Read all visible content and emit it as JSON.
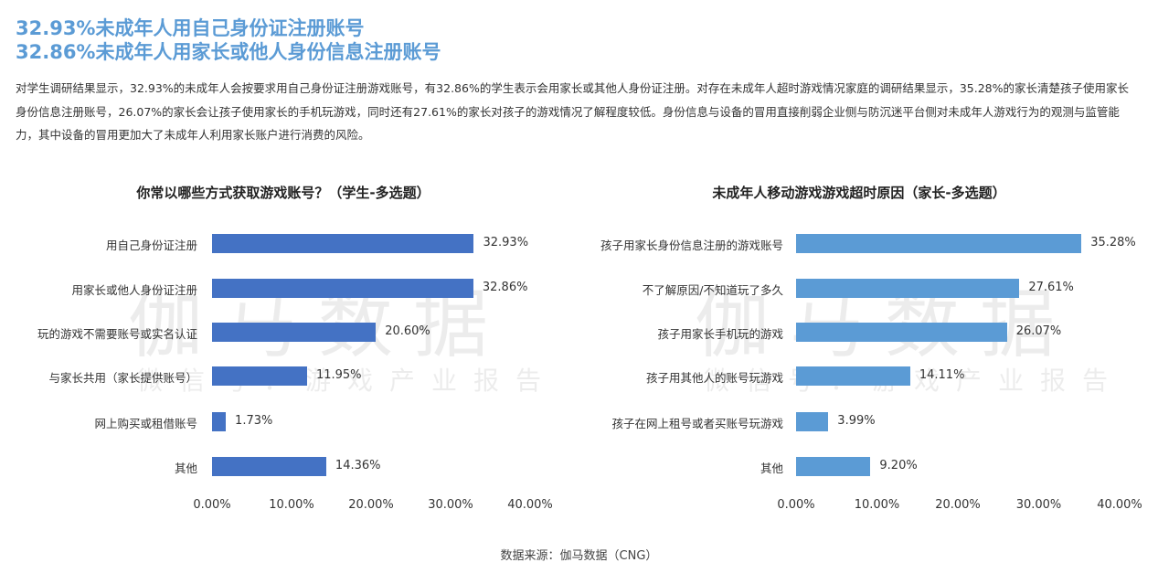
{
  "header": {
    "headline_1": "32.93%未成年人用自己身份证注册账号",
    "headline_2": "32.86%未成年人用家长或他人身份信息注册账号",
    "paragraph": "对学生调研结果显示，32.93%的未成年人会按要求用自己身份证注册游戏账号，有32.86%的学生表示会用家长或其他人身份证注册。对存在未成年人超时游戏情况家庭的调研结果显示，35.28%的家长清楚孩子使用家长身份信息注册账号，26.07%的家长会让孩子使用家长的手机玩游戏，同时还有27.61%的家长对孩子的游戏情况了解程度较低。身份信息与设备的冒用直接削弱企业侧与防沉迷平台侧对未成年人游戏行为的观测与监管能力，其中设备的冒用更加大了未成年人利用家长账户进行消费的风险。"
  },
  "watermark": {
    "big": "伽马数据",
    "small": "微信号：游戏产业报告"
  },
  "colors": {
    "headline": "#5b9bd5",
    "left_bar": "#4472c4",
    "right_bar": "#5b9bd5"
  },
  "chart_data": [
    {
      "type": "bar",
      "orientation": "horizontal",
      "title": "你常以哪些方式获取游戏账号？（学生-多选题）",
      "categories": [
        "用自己身份证注册",
        "用家长或他人身份证注册",
        "玩的游戏不需要账号或实名认证",
        "与家长共用（家长提供账号）",
        "网上购买或租借账号",
        "其他"
      ],
      "values": [
        32.93,
        32.86,
        20.6,
        11.95,
        1.73,
        14.36
      ],
      "value_labels": [
        "32.93%",
        "32.86%",
        "20.60%",
        "11.95%",
        "1.73%",
        "14.36%"
      ],
      "xticks": [
        "0.00%",
        "10.00%",
        "20.00%",
        "30.00%",
        "40.00%"
      ],
      "xlim": [
        0,
        40
      ],
      "xlabel": "",
      "ylabel": "",
      "grid": false,
      "color": "#4472c4"
    },
    {
      "type": "bar",
      "orientation": "horizontal",
      "title": "未成年人移动游戏游戏超时原因（家长-多选题）",
      "categories": [
        "孩子用家长身份信息注册的游戏账号",
        "不了解原因/不知道玩了多久",
        "孩子用家长手机玩的游戏",
        "孩子用其他人的账号玩游戏",
        "孩子在网上租号或者买账号玩游戏",
        "其他"
      ],
      "values": [
        35.28,
        27.61,
        26.07,
        14.11,
        3.99,
        9.2
      ],
      "value_labels": [
        "35.28%",
        "27.61%",
        "26.07%",
        "14.11%",
        "3.99%",
        "9.20%"
      ],
      "xticks": [
        "0.00%",
        "10.00%",
        "20.00%",
        "30.00%",
        "40.00%"
      ],
      "xlim": [
        0,
        40
      ],
      "xlabel": "",
      "ylabel": "",
      "grid": false,
      "color": "#5b9bd5"
    }
  ],
  "footer": {
    "source": "数据来源：伽马数据（CNG）"
  }
}
